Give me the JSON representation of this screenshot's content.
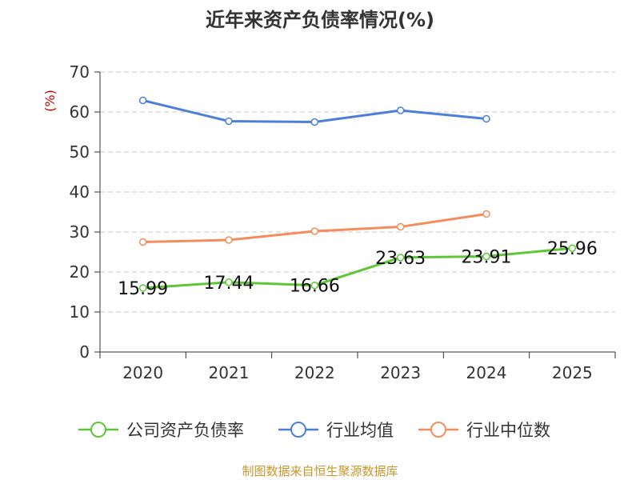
{
  "chart_data": {
    "type": "line",
    "title": "近年来资产负债率情况(%)",
    "ylabel": "(%)",
    "xlabel": "",
    "categories": [
      "2020",
      "2021",
      "2022",
      "2023",
      "2024",
      "2025"
    ],
    "ylim": [
      0,
      70
    ],
    "yticks": [
      0,
      10,
      20,
      30,
      40,
      50,
      60,
      70
    ],
    "grid": true,
    "legend_position": "bottom",
    "series": [
      {
        "name": "公司资产负债率",
        "color": "#5dc738",
        "values": [
          15.99,
          17.44,
          16.66,
          23.63,
          23.91,
          25.96
        ],
        "labels": [
          "15.99",
          "17.44",
          "16.66",
          "23.63",
          "23.91",
          "25.96"
        ]
      },
      {
        "name": "行业均值",
        "color": "#4e7fd8",
        "values": [
          62.9,
          57.7,
          57.5,
          60.4,
          58.3,
          null
        ]
      },
      {
        "name": "行业中位数",
        "color": "#f48d5c",
        "values": [
          27.5,
          28.0,
          30.2,
          31.3,
          34.5,
          null
        ]
      }
    ]
  },
  "footer": {
    "source": "制图数据来自恒生聚源数据库"
  },
  "colors": {
    "ylabel": "#cc0000",
    "source": "#c8962a",
    "grid": "#c8c8c8",
    "axis": "#333333"
  }
}
